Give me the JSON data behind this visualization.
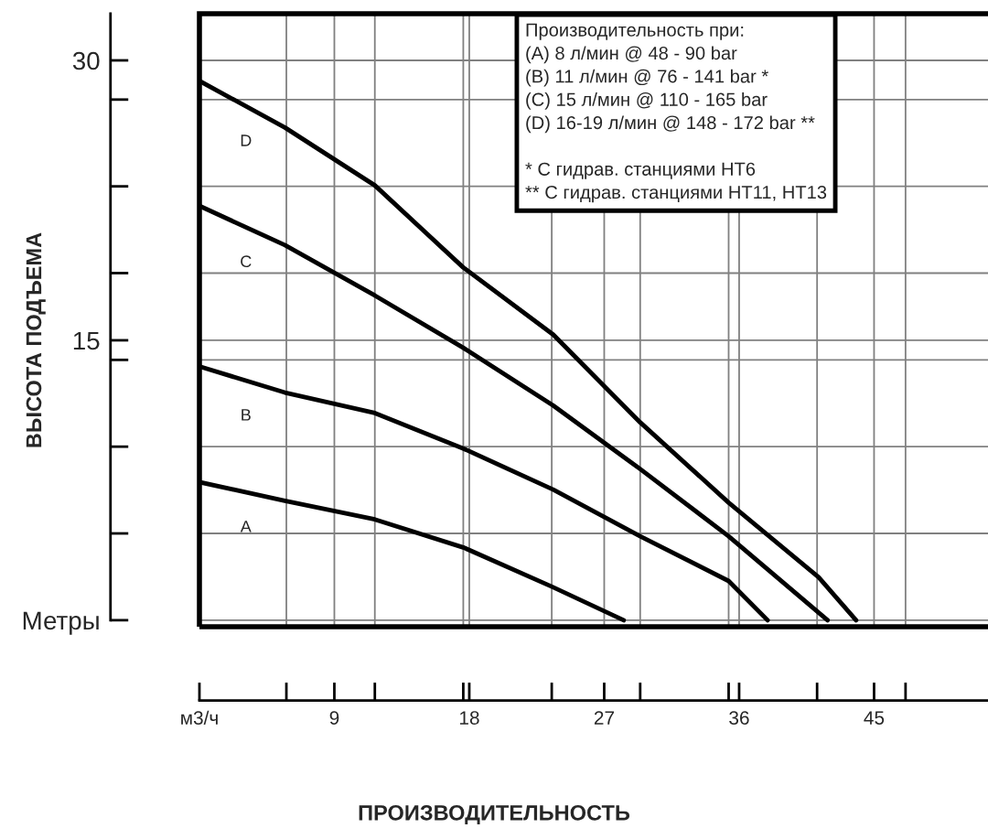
{
  "chart_data": {
    "type": "line",
    "xlabel": "ПРОИЗВОДИТЕЛЬНОСТЬ",
    "ylabel": "ВЫСОТА ПОДЪЕМА",
    "xlim": [
      0,
      52.6
    ],
    "ylim": [
      -0.35,
      32.5
    ],
    "xticks": [
      {
        "value": 0,
        "label": "м3/ч"
      },
      {
        "value": 5.8,
        "label": null
      },
      9,
      {
        "value": 11.7,
        "label": null
      },
      {
        "value": 17.6,
        "label": null
      },
      18,
      {
        "value": 23.5,
        "label": null
      },
      27,
      {
        "value": 29.4,
        "label": null
      },
      {
        "value": 35.3,
        "label": null
      },
      36,
      {
        "value": 41.2,
        "label": null
      },
      45,
      {
        "value": 47.1,
        "label": null
      }
    ],
    "yticks": [
      {
        "value": 0,
        "label": "Метры"
      },
      {
        "value": 4.65,
        "label": null
      },
      {
        "value": 9.3,
        "label": null
      },
      {
        "value": 13.95,
        "label": null
      },
      15,
      {
        "value": 18.6,
        "label": null
      },
      {
        "value": 23.25,
        "label": null
      },
      {
        "value": 27.9,
        "label": null
      },
      30
    ],
    "series": [
      {
        "name": "D",
        "color": "#000000",
        "x": [
          0,
          5.7,
          11.7,
          17.6,
          23.6,
          29.4,
          35.3,
          41.3,
          43.8
        ],
        "values": [
          28.9,
          26.4,
          23.3,
          18.9,
          15.3,
          10.6,
          6.3,
          2.3,
          0
        ]
      },
      {
        "name": "C",
        "color": "#000000",
        "x": [
          0,
          5.7,
          11.7,
          17.6,
          23.6,
          29.4,
          35.3,
          41.9
        ],
        "values": [
          22.2,
          20.1,
          17.4,
          14.6,
          11.5,
          8.1,
          4.5,
          0
        ]
      },
      {
        "name": "B",
        "color": "#000000",
        "x": [
          0,
          5.7,
          11.7,
          17.6,
          23.6,
          29.4,
          35.3,
          37.9
        ],
        "values": [
          13.6,
          12.2,
          11.1,
          9.2,
          7.0,
          4.5,
          2.1,
          0
        ]
      },
      {
        "name": "A",
        "color": "#000000",
        "x": [
          0,
          5.7,
          11.7,
          17.6,
          23.5,
          28.3
        ],
        "values": [
          7.4,
          6.4,
          5.4,
          3.9,
          1.8,
          0
        ]
      }
    ],
    "annotations": [
      "Производительность при:\n(A) 8 л/мин @ 48 - 90 bar\n(B) 11 л/мин @ 76 - 141 bar *\n(C) 15 л/мин @ 110 - 165 bar\n(D) 16-19 л/мин @ 148 - 172 bar **\n\n* С гидрав. станциями HT6\n** С гидрав. станциями HT11, HT13"
    ],
    "grid": true,
    "legend": false,
    "marker": "none",
    "line_style": "solid"
  }
}
